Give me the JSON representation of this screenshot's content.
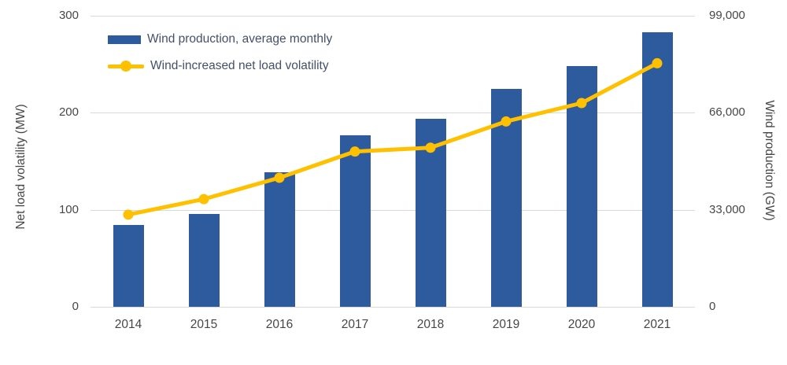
{
  "chart_data": {
    "type": "combo",
    "categories": [
      "2014",
      "2015",
      "2016",
      "2017",
      "2018",
      "2019",
      "2020",
      "2021"
    ],
    "series": [
      {
        "name": "Wind production, average monthly",
        "type": "bar",
        "axis": "right",
        "unit": "GW",
        "values": [
          27800,
          31700,
          45700,
          58400,
          64000,
          74000,
          81800,
          93400
        ],
        "color": "#2E5B9E"
      },
      {
        "name": "Wind-increased net load volatility",
        "type": "line",
        "axis": "left",
        "unit": "MW",
        "values": [
          95,
          111,
          133,
          160,
          164,
          191,
          210,
          251
        ],
        "color": "#FFC000"
      }
    ],
    "left_axis": {
      "label": "Net load volatility (MW)",
      "range": [
        0,
        300
      ],
      "tick_labels": [
        "0",
        "100",
        "200",
        "300"
      ],
      "tick_values": [
        0,
        100,
        200,
        300
      ]
    },
    "right_axis": {
      "label": "Wind production (GW)",
      "range": [
        0,
        99000
      ],
      "tick_labels": [
        "0",
        "33,000",
        "66,000",
        "99,000"
      ],
      "tick_values": [
        0,
        33000,
        66000,
        99000
      ]
    },
    "grid": "horizontal",
    "gridline_color": "#D9D9D9",
    "legend_position": "top-left-inside",
    "background": "#FFFFFF",
    "text_color": "#474747"
  }
}
